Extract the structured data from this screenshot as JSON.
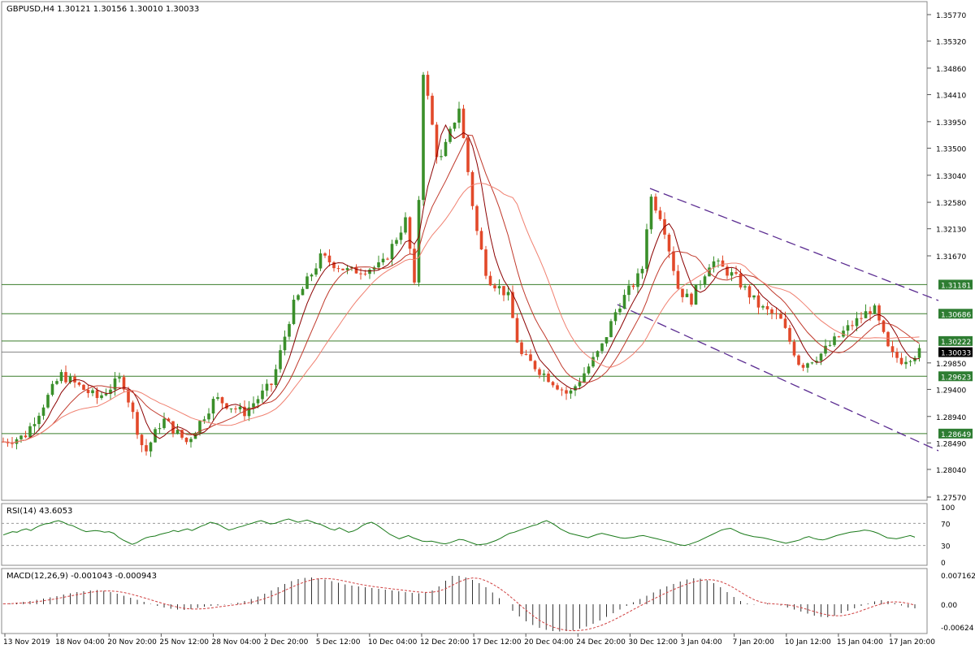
{
  "symbol_header": "GBPUSD,H4  1.30121 1.30156 1.30010 1.30033",
  "colors": {
    "bull": "#3a8f2a",
    "bear": "#e2492a",
    "ma_fast": "#8b0000",
    "ma_mid": "#c0392b",
    "ma_slow": "#f08070",
    "level_line": "#3a7d2a",
    "trend_line": "#5b2c91",
    "rsi_line": "#1a7a1a",
    "macd_hist": "#333333",
    "macd_signal": "#d04040",
    "price_label_bg": "#2e7d32",
    "current_label_bg": "#000000"
  },
  "price_axis": {
    "ticks": [
      "1.35770",
      "1.35320",
      "1.34860",
      "1.34410",
      "1.33950",
      "1.33500",
      "1.33040",
      "1.32580",
      "1.32130",
      "1.31670",
      "1.29850",
      "1.29400",
      "1.28940",
      "1.28490",
      "1.28040",
      "1.27570"
    ],
    "range": [
      1.2757,
      1.3577
    ]
  },
  "levels": [
    "1.31181",
    "1.30686",
    "1.30222",
    "1.29623",
    "1.28649"
  ],
  "current_price": "1.30033",
  "time_axis": [
    "13 Nov 2019",
    "18 Nov 04:00",
    "20 Nov 20:00",
    "25 Nov 12:00",
    "28 Nov 04:00",
    "2 Dec 20:00",
    "5 Dec 12:00",
    "10 Dec 04:00",
    "12 Dec 20:00",
    "17 Dec 12:00",
    "20 Dec 04:00",
    "24 Dec 20:00",
    "30 Dec 12:00",
    "3 Jan 04:00",
    "7 Jan 20:00",
    "10 Jan 12:00",
    "15 Jan 04:00",
    "17 Jan 20:00"
  ],
  "rsi": {
    "title": "RSI(14) 43.6053",
    "ticks": [
      "100",
      "70",
      "30",
      "0"
    ],
    "path": [
      49,
      52,
      55,
      54,
      58,
      60,
      57,
      62,
      66,
      69,
      70,
      73,
      75,
      72,
      68,
      66,
      62,
      58,
      55,
      56,
      57,
      56,
      54,
      55,
      52,
      45,
      40,
      36,
      32,
      35,
      40,
      44,
      46,
      47,
      50,
      52,
      54,
      57,
      55,
      58,
      60,
      57,
      61,
      65,
      68,
      72,
      70,
      67,
      62,
      58,
      60,
      63,
      65,
      68,
      70,
      73,
      75,
      72,
      69,
      70,
      73,
      76,
      78,
      75,
      72,
      74,
      76,
      73,
      70,
      68,
      64,
      60,
      58,
      62,
      58,
      54,
      56,
      60,
      66,
      70,
      72,
      68,
      62,
      56,
      50,
      46,
      42,
      45,
      48,
      44,
      41,
      38,
      37,
      38,
      36,
      34,
      33,
      35,
      38,
      41,
      40,
      37,
      34,
      31,
      32,
      33,
      36,
      39,
      43,
      48,
      52,
      54,
      57,
      60,
      63,
      66,
      68,
      72,
      75,
      71,
      66,
      60,
      56,
      52,
      50,
      48,
      46,
      44,
      47,
      50,
      52,
      50,
      48,
      46,
      44,
      43,
      44,
      45,
      47,
      48,
      46,
      44,
      42,
      40,
      38,
      36,
      33,
      31,
      30,
      32,
      35,
      38,
      42,
      46,
      50,
      54,
      58,
      60,
      61,
      57,
      53,
      50,
      48,
      46,
      45,
      44,
      42,
      40,
      38,
      36,
      34,
      36,
      38,
      40,
      44,
      46,
      43,
      41,
      40,
      42,
      45,
      48,
      50,
      52,
      54,
      55,
      56,
      58,
      57,
      55,
      52,
      48,
      44,
      43,
      42,
      44,
      46,
      48,
      45
    ],
    "value": 43.6053
  },
  "macd": {
    "title": "MACD(12,26,9) -0.001043 -0.000943",
    "ticks": [
      "0.007162",
      "0.00",
      "-0.00624"
    ],
    "hist": [
      0.1,
      0.2,
      0.4,
      0.6,
      0.8,
      1.1,
      1.4,
      1.7,
      2.0,
      2.4,
      2.7,
      3.0,
      3.2,
      3.4,
      3.5,
      3.3,
      3.0,
      2.6,
      2.1,
      1.6,
      1.1,
      0.6,
      0.1,
      -0.4,
      -0.8,
      -1.1,
      -1.3,
      -1.4,
      -1.2,
      -0.9,
      -0.6,
      -0.4,
      -0.3,
      -0.1,
      0.1,
      0.4,
      0.8,
      1.3,
      1.9,
      2.6,
      3.4,
      4.2,
      5.0,
      5.7,
      6.2,
      6.5,
      6.6,
      6.4,
      6.1,
      5.7,
      5.3,
      4.9,
      4.6,
      4.4,
      4.2,
      4.0,
      3.8,
      3.6,
      3.4,
      3.2,
      3.0,
      2.8,
      2.7,
      2.9,
      3.4,
      4.4,
      5.8,
      7.0,
      7.0,
      6.6,
      6.0,
      5.2,
      4.2,
      2.9,
      1.5,
      0.0,
      -1.6,
      -3.0,
      -4.2,
      -5.1,
      -5.8,
      -6.3,
      -6.6,
      -6.7,
      -6.6,
      -6.4,
      -6.0,
      -5.5,
      -4.8,
      -4.0,
      -3.1,
      -2.2,
      -1.3,
      -0.4,
      0.5,
      1.3,
      2.1,
      2.9,
      3.7,
      4.4,
      5.0,
      5.6,
      6.1,
      6.4,
      6.3,
      5.9,
      5.2,
      4.2,
      3.0,
      1.8,
      0.8,
      0.2,
      -0.1,
      0.0,
      0.2,
      0.1,
      -0.3,
      -0.8,
      -1.3,
      -1.8,
      -2.3,
      -2.8,
      -3.1,
      -3.2,
      -2.8,
      -2.2,
      -1.6,
      -1.0,
      -0.4,
      0.2,
      0.7,
      1.0,
      0.8,
      0.3,
      -0.3,
      -0.8,
      -1.0
    ]
  }
}
